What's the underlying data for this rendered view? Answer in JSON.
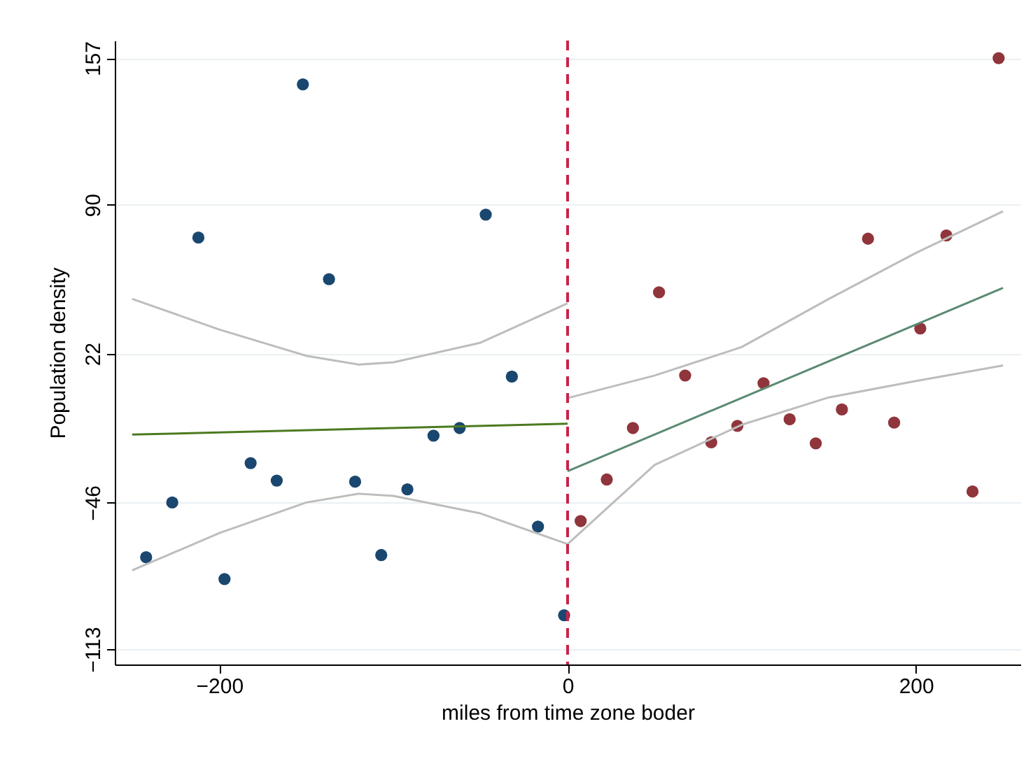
{
  "chart_data": {
    "type": "scatter",
    "xlabel": "miles from time zone boder",
    "ylabel": "Population density",
    "xlim": [
      -260,
      260
    ],
    "ylim": [
      -120,
      165
    ],
    "xticks": [
      -200,
      0,
      200
    ],
    "yticks": [
      157,
      90,
      22,
      -46,
      -113
    ],
    "grid": "y",
    "series": [
      {
        "type": "scatter",
        "marker": "circle",
        "color": "#1a476f",
        "x": [
          -242,
          -227,
          -212,
          -197,
          -182,
          -167,
          -152,
          -137,
          -122,
          -107,
          -92,
          -77,
          -62,
          -47,
          -32,
          -17,
          -2
        ],
        "values": [
          -71,
          -46,
          75,
          -81,
          -28,
          -36,
          145,
          56,
          -36.5,
          -70,
          -40,
          -15.5,
          -12,
          85.5,
          11.5,
          -57,
          -97.5
        ]
      },
      {
        "type": "scatter",
        "marker": "circle",
        "color": "#90353b",
        "x": [
          7.5,
          22.5,
          37.5,
          52.5,
          67.5,
          82.5,
          97.5,
          112.5,
          127.5,
          142.5,
          157.5,
          172.5,
          187.5,
          202.5,
          217.5,
          232.5,
          247.5
        ],
        "values": [
          -54.5,
          -35.5,
          -12,
          50,
          12,
          -18.5,
          -11,
          8.5,
          -8,
          -19,
          -3.5,
          74.5,
          -9.5,
          33.5,
          76,
          -41,
          157
        ]
      },
      {
        "type": "line",
        "color": "#4b7a1f",
        "x": [
          -250,
          0
        ],
        "values": [
          -15,
          -10
        ]
      },
      {
        "type": "line",
        "color": "#5b8a72",
        "x": [
          0,
          250
        ],
        "values": [
          -31.7,
          52
        ]
      },
      {
        "type": "line",
        "color": "#bdbdbd",
        "x": [
          -250,
          -200,
          -150,
          -120,
          -100,
          -50,
          0
        ],
        "values": [
          47,
          33,
          21,
          17,
          18,
          27,
          45
        ]
      },
      {
        "type": "line",
        "color": "#bdbdbd",
        "x": [
          -250,
          -200,
          -150,
          -120,
          -100,
          -50,
          0
        ],
        "values": [
          -77,
          -60,
          -46,
          -42,
          -43,
          -51,
          -65
        ]
      },
      {
        "type": "line",
        "color": "#bdbdbd",
        "x": [
          0,
          50,
          100,
          150,
          200,
          250
        ],
        "values": [
          1.7,
          12,
          25,
          47,
          68,
          87
        ]
      },
      {
        "type": "line",
        "color": "#bdbdbd",
        "x": [
          0,
          50,
          100,
          150,
          200,
          250
        ],
        "values": [
          -65,
          -28.8,
          -10.5,
          2,
          9.5,
          16.6
        ]
      }
    ],
    "ref_lines": [
      {
        "axis": "x",
        "value": 0,
        "color": "#c8234a",
        "line_style": "dashed"
      }
    ]
  }
}
